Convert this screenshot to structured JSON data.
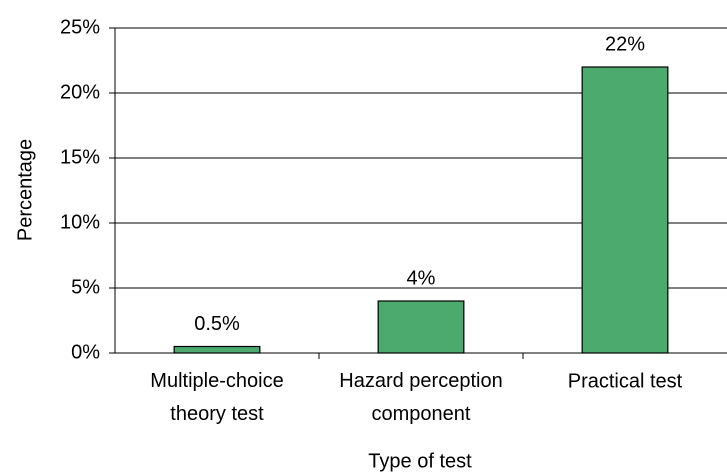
{
  "chart_data": {
    "type": "bar",
    "x_label": "Type of test",
    "y_label": "Percentage",
    "categories": [
      "Multiple-choice\ntheory test",
      "Hazard perception\ncomponent",
      "Practical test"
    ],
    "values": [
      0.5,
      4,
      22
    ],
    "value_labels": [
      "0.5%",
      "4%",
      "22%"
    ],
    "color": "#4caa6e",
    "ylim": [
      0,
      25
    ],
    "yticks": [
      {
        "value": 0,
        "label": "0%"
      },
      {
        "value": 5,
        "label": "5%"
      },
      {
        "value": 10,
        "label": "10%"
      },
      {
        "value": 15,
        "label": "15%"
      },
      {
        "value": 20,
        "label": "20%"
      },
      {
        "value": 25,
        "label": "25%"
      }
    ],
    "grid": true
  }
}
